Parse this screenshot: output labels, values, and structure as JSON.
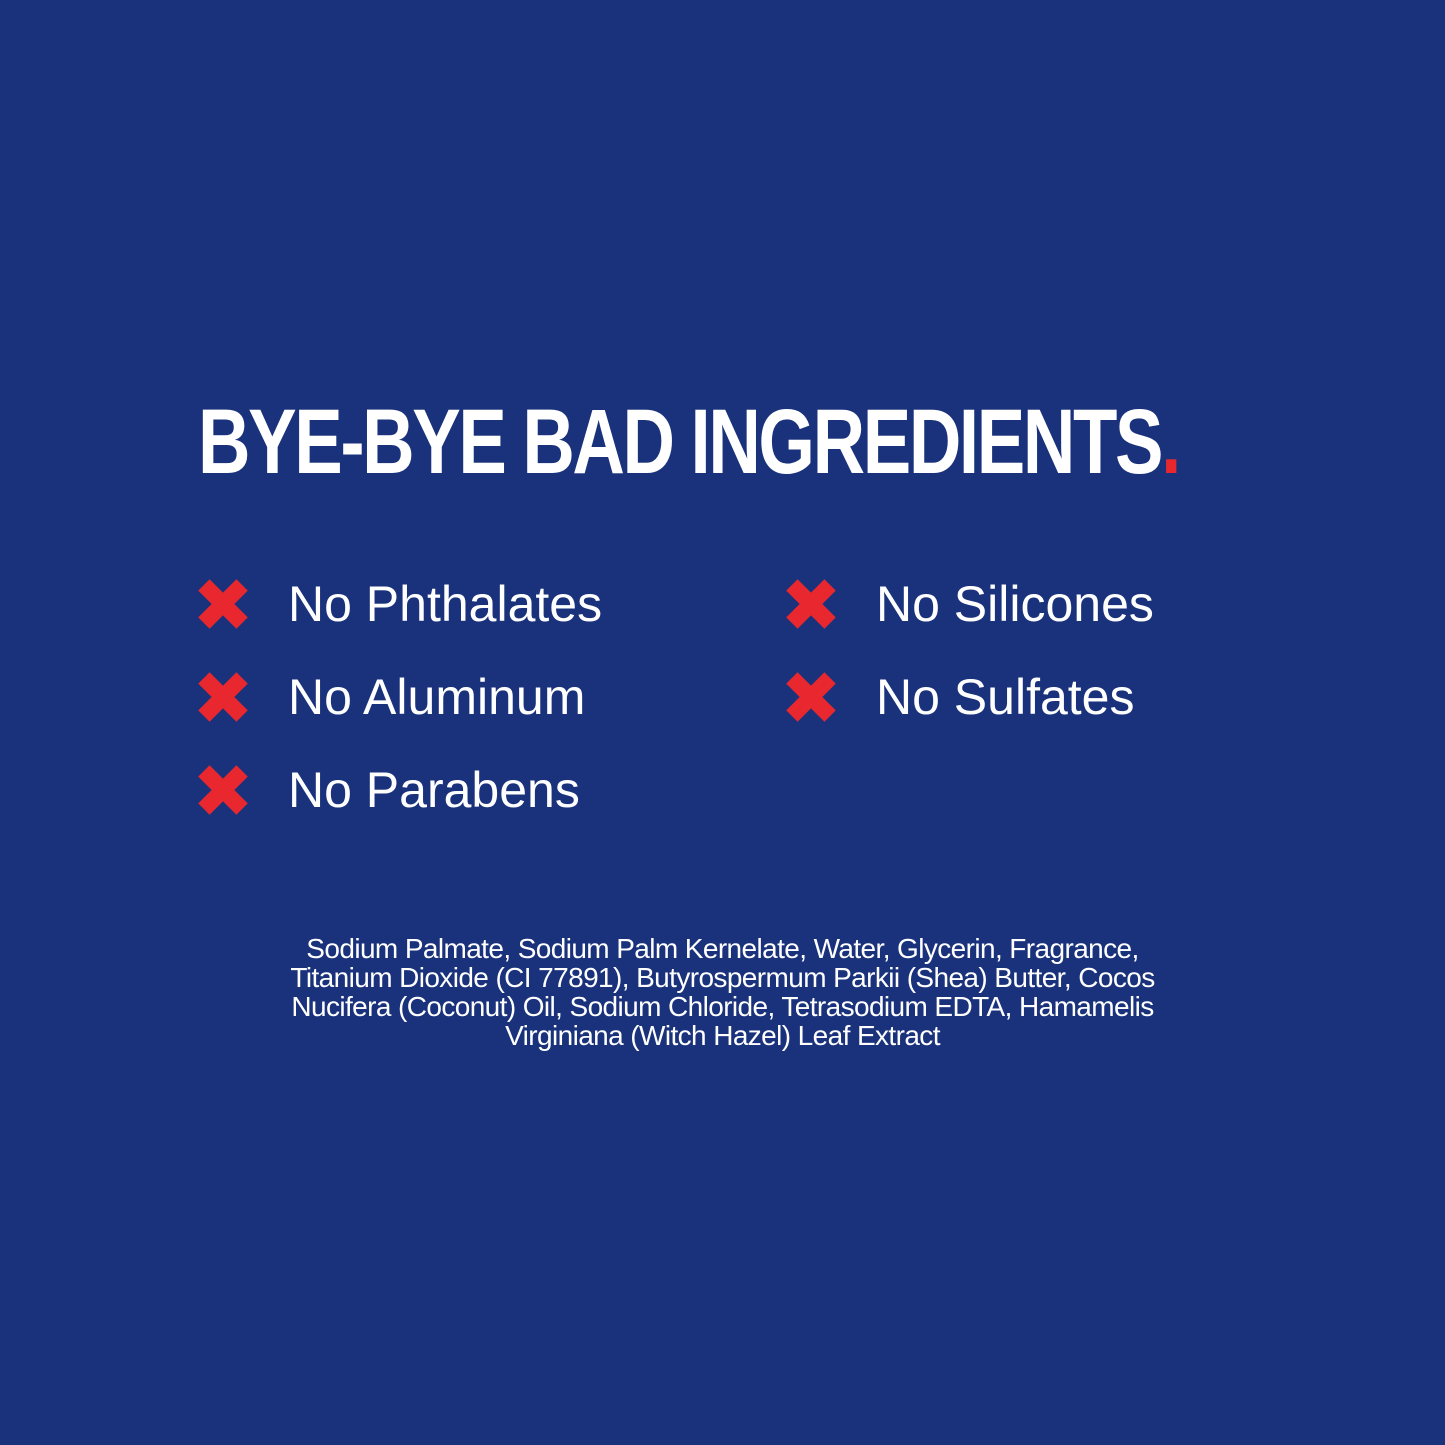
{
  "headline": {
    "text": "BYE-BYE BAD INGREDIENTS",
    "dot": "."
  },
  "claims": [
    {
      "label": "No Phthalates",
      "icon": "x-icon"
    },
    {
      "label": "No Aluminum",
      "icon": "x-icon"
    },
    {
      "label": "No Parabens",
      "icon": "x-icon"
    },
    {
      "label": "No Silicones",
      "icon": "x-icon"
    },
    {
      "label": "No Sulfates",
      "icon": "x-icon"
    }
  ],
  "ingredients": [
    "Sodium Palmate, Sodium Palm Kernelate, Water, Glycerin, Fragrance,",
    "Titanium Dioxide (CI 77891), Butyrospermum Parkii (Shea) Butter, Cocos",
    "Nucifera (Coconut) Oil, Sodium Chloride, Tetrasodium EDTA, Hamamelis",
    "Virginiana (Witch Hazel) Leaf Extract"
  ],
  "colors": {
    "background": "#1a327b",
    "accent": "#e8282e",
    "text": "#ffffff"
  }
}
